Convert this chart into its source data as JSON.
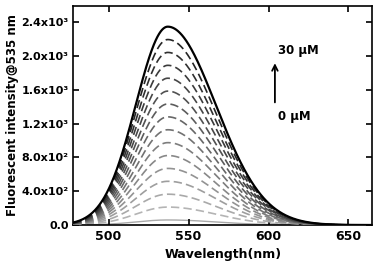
{
  "xlabel": "Wavelength(nm)",
  "ylabel": "Fluorescent intensity@535 nm",
  "xmin": 478,
  "xmax": 665,
  "ymin": 0,
  "ymax": 2600,
  "peak_wavelength": 537,
  "n_curves": 16,
  "max_amplitude": 2350,
  "min_amplitude": 60,
  "annotation_top": "30 μM",
  "annotation_bottom": "0 μM",
  "yticks": [
    0,
    400,
    800,
    1200,
    1600,
    2000,
    2400
  ],
  "ytick_labels": [
    "0.0",
    "4.0x10²",
    "8.0x10²",
    "1.2x10³",
    "1.6x10³",
    "2.0x10³",
    "2.4x10³"
  ],
  "xticks": [
    500,
    550,
    600,
    650
  ],
  "background_color": "#ffffff"
}
